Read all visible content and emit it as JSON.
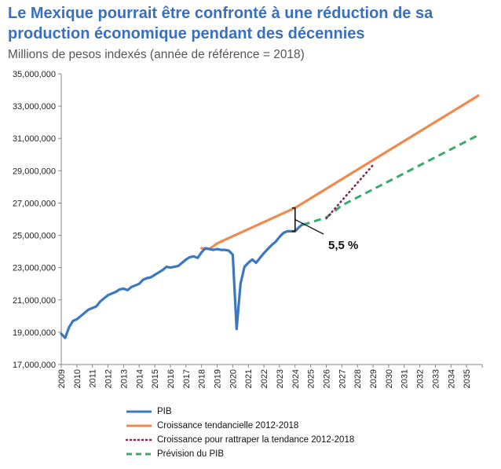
{
  "chart_data": {
    "type": "line",
    "title": "Le Mexique pourrait être confronté à une réduction de sa production économique pendant des décennies",
    "subtitle": "Millions de pesos indexés (année de référence = 2018)",
    "xlabel": "",
    "ylabel": "",
    "ylim": [
      17000000,
      35000000
    ],
    "xlim": [
      2009,
      2036
    ],
    "y_ticks": [
      "17,000,000",
      "19,000,000",
      "21,000,000",
      "23,000,000",
      "25,000,000",
      "27,000,000",
      "29,000,000",
      "31,000,000",
      "33,000,000",
      "35,000,000"
    ],
    "x_ticks": [
      "2009",
      "2010",
      "2011",
      "2012",
      "2013",
      "2014",
      "2015",
      "2016",
      "2017",
      "2018",
      "2019",
      "2020",
      "2021",
      "2022",
      "2023",
      "2024",
      "2025",
      "2026",
      "2027",
      "2028",
      "2029",
      "2030",
      "2031",
      "2032",
      "2033",
      "2034",
      "2035"
    ],
    "grid": false,
    "legend_position": "bottom",
    "annotation": "5,5 %",
    "series": [
      {
        "name": "PIB",
        "color": "#3a78c2",
        "style": "solid",
        "points": [
          [
            2009.0,
            18900000
          ],
          [
            2009.25,
            18650000
          ],
          [
            2009.5,
            19300000
          ],
          [
            2009.75,
            19700000
          ],
          [
            2010.0,
            19800000
          ],
          [
            2010.25,
            20000000
          ],
          [
            2010.5,
            20200000
          ],
          [
            2010.75,
            20400000
          ],
          [
            2011.0,
            20500000
          ],
          [
            2011.25,
            20600000
          ],
          [
            2011.5,
            20900000
          ],
          [
            2011.75,
            21100000
          ],
          [
            2012.0,
            21300000
          ],
          [
            2012.25,
            21400000
          ],
          [
            2012.5,
            21500000
          ],
          [
            2012.75,
            21650000
          ],
          [
            2013.0,
            21700000
          ],
          [
            2013.25,
            21600000
          ],
          [
            2013.5,
            21800000
          ],
          [
            2013.75,
            21900000
          ],
          [
            2014.0,
            22000000
          ],
          [
            2014.25,
            22250000
          ],
          [
            2014.5,
            22350000
          ],
          [
            2014.75,
            22400000
          ],
          [
            2015.0,
            22550000
          ],
          [
            2015.25,
            22700000
          ],
          [
            2015.5,
            22850000
          ],
          [
            2015.75,
            23050000
          ],
          [
            2016.0,
            23000000
          ],
          [
            2016.25,
            23050000
          ],
          [
            2016.5,
            23100000
          ],
          [
            2016.75,
            23300000
          ],
          [
            2017.0,
            23500000
          ],
          [
            2017.25,
            23650000
          ],
          [
            2017.5,
            23700000
          ],
          [
            2017.75,
            23600000
          ],
          [
            2018.0,
            23950000
          ],
          [
            2018.25,
            24200000
          ],
          [
            2018.5,
            24150000
          ],
          [
            2018.75,
            24100000
          ],
          [
            2019.0,
            24150000
          ],
          [
            2019.25,
            24100000
          ],
          [
            2019.5,
            24100000
          ],
          [
            2019.75,
            24050000
          ],
          [
            2020.0,
            23800000
          ],
          [
            2020.25,
            19200000
          ],
          [
            2020.5,
            22000000
          ],
          [
            2020.75,
            23050000
          ],
          [
            2021.0,
            23300000
          ],
          [
            2021.25,
            23500000
          ],
          [
            2021.5,
            23300000
          ],
          [
            2021.75,
            23600000
          ],
          [
            2022.0,
            23900000
          ],
          [
            2022.25,
            24150000
          ],
          [
            2022.5,
            24400000
          ],
          [
            2022.75,
            24600000
          ],
          [
            2023.0,
            24900000
          ],
          [
            2023.25,
            25150000
          ],
          [
            2023.5,
            25250000
          ],
          [
            2023.75,
            25250000
          ],
          [
            2024.0,
            25250000
          ],
          [
            2024.25,
            25500000
          ],
          [
            2024.5,
            25700000
          ]
        ]
      },
      {
        "name": "Croissance tendancielle 2012-2018",
        "color": "#ef8a4f",
        "style": "solid",
        "points": [
          [
            2018.0,
            24200000
          ],
          [
            2018.5,
            24150000
          ],
          [
            2019.0,
            24500000
          ],
          [
            2024.0,
            26700000
          ],
          [
            2035.75,
            33650000
          ]
        ]
      },
      {
        "name": "Croissance pour rattraper la tendance 2012-2018",
        "color": "#7b2d5d",
        "style": "dotted",
        "points": [
          [
            2026.0,
            26050000
          ],
          [
            2029.0,
            29350000
          ]
        ]
      },
      {
        "name": "Prévision du PIB",
        "color": "#3aaa6a",
        "style": "dashed",
        "points": [
          [
            2024.5,
            25650000
          ],
          [
            2026.0,
            26100000
          ],
          [
            2027.0,
            26850000
          ],
          [
            2035.75,
            31200000
          ]
        ]
      }
    ]
  }
}
